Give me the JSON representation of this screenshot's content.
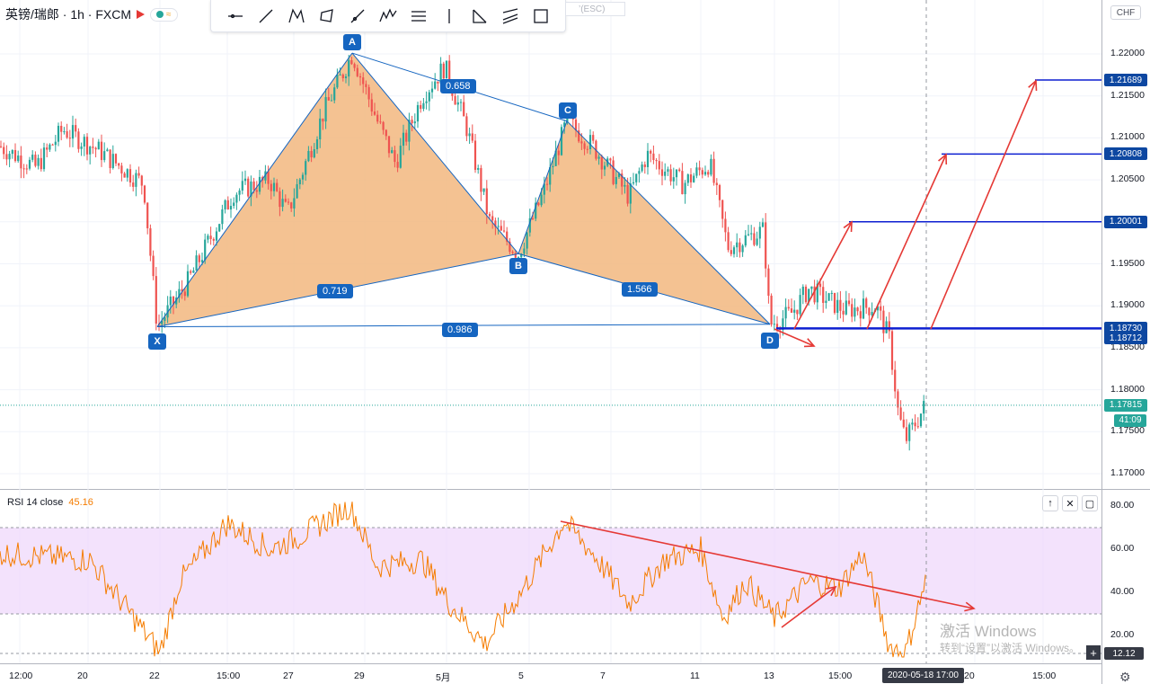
{
  "header": {
    "symbol": "英镑/瑞郎 · 1h · FXCM",
    "pill_text": "≈"
  },
  "toolbar": {
    "tools": [
      "horizontal-line",
      "trend-line",
      "xabcd-pattern",
      "rectangle",
      "ray",
      "elliott-wave",
      "fib-channel",
      "vertical-line",
      "fib-fan",
      "parallel-channel",
      "box"
    ],
    "esc_hint": "’(ESC)"
  },
  "colors": {
    "up": "#26a69a",
    "down": "#ef5350",
    "pattern_fill": "#f2b77f",
    "pattern_line": "#1565c0",
    "arrow": "#e53935",
    "level_line": "#0d1fd1",
    "rsi_line": "#f57c00",
    "rsi_band": "#efd8fb"
  },
  "axis": {
    "currency": "CHF",
    "price_ticks": [
      "1.22000",
      "1.21500",
      "1.21000",
      "1.20500",
      "1.20000",
      "1.19500",
      "1.19000",
      "1.18500",
      "1.18000",
      "1.17500",
      "1.17000"
    ],
    "rsi_ticks": [
      "80.00",
      "60.00",
      "40.00",
      "20.00"
    ],
    "time_ticks": [
      "12:00",
      "20",
      "22",
      "15:00",
      "27",
      "29",
      "5月",
      "5",
      "7",
      "11",
      "13",
      "15:00",
      "20",
      "15:00"
    ],
    "cursor_time": "2020-05-18   17:00"
  },
  "chart_data": {
    "type": "candlestick",
    "symbol": "英镑/瑞郎",
    "interval": "1h",
    "source": "FXCM",
    "ylim": [
      1.168,
      1.224
    ],
    "last_price": 1.17815,
    "countdown": "41:09",
    "levels": [
      1.21689,
      1.20808,
      1.20001,
      1.1873,
      1.18712
    ],
    "pattern": {
      "name": "XABCD",
      "points": [
        {
          "label": "X",
          "x_label": "22",
          "y": 1.1875
        },
        {
          "label": "A",
          "x_label": "28",
          "y": 1.22
        },
        {
          "label": "B",
          "x_label": "4",
          "y": 1.1963
        },
        {
          "label": "C",
          "x_label": "6",
          "y": 1.212
        },
        {
          "label": "D",
          "x_label": "13",
          "y": 1.1877
        }
      ],
      "ratios": [
        "0.719",
        "0.658",
        "1.566",
        "0.986"
      ]
    },
    "rsi": {
      "label": "RSI 14 close",
      "value": 45.16,
      "ylim": [
        7,
        88
      ],
      "band": [
        30,
        70
      ],
      "marker": "12.12"
    }
  },
  "watermark": {
    "line1": "激活 Windows",
    "line2": "转到“设置”以激活 Windows。"
  }
}
